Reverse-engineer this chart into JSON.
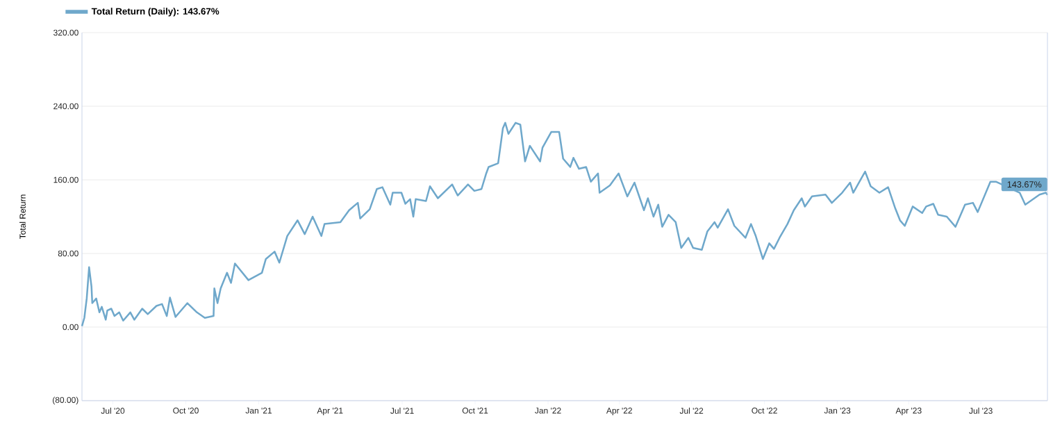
{
  "chart_data": {
    "type": "line",
    "ylabel": "Total Return",
    "legend": "top left",
    "grid": "y",
    "marker": "none",
    "line_style": "solid",
    "xlim": [
      "2020-05-23",
      "2023-09-23"
    ],
    "xticks": [
      {
        "value": "2020-07-01",
        "label": "Jul '20"
      },
      {
        "value": "2020-10-01",
        "label": "Oct '20"
      },
      {
        "value": "2021-01-01",
        "label": "Jan '21"
      },
      {
        "value": "2021-04-01",
        "label": "Apr '21"
      },
      {
        "value": "2021-07-01",
        "label": "Jul '21"
      },
      {
        "value": "2021-10-01",
        "label": "Oct '21"
      },
      {
        "value": "2022-01-01",
        "label": "Jan '22"
      },
      {
        "value": "2022-04-01",
        "label": "Apr '22"
      },
      {
        "value": "2022-07-01",
        "label": "Jul '22"
      },
      {
        "value": "2022-10-01",
        "label": "Oct '22"
      },
      {
        "value": "2023-01-01",
        "label": "Jan '23"
      },
      {
        "value": "2023-04-01",
        "label": "Apr '23"
      },
      {
        "value": "2023-07-01",
        "label": "Jul '23"
      }
    ],
    "ylim": [
      -80,
      320
    ],
    "yticks": [
      {
        "value": -80,
        "label": "(80.00)"
      },
      {
        "value": 0,
        "label": "0.00"
      },
      {
        "value": 80,
        "label": "80.00"
      },
      {
        "value": 160,
        "label": "160.00"
      },
      {
        "value": 240,
        "label": "240.00"
      },
      {
        "value": 320,
        "label": "320.00"
      }
    ],
    "annotations": [
      {
        "text": "143.67%",
        "x": "2023-09-23",
        "y": 143.67
      }
    ],
    "series": [
      {
        "name": "Total Return (Daily): 143.67%",
        "color": "#6fa8cb",
        "x": [
          "2020-05-23",
          "2020-05-26",
          "2020-05-29",
          "2020-06-01",
          "2020-06-04",
          "2020-06-05",
          "2020-06-10",
          "2020-06-14",
          "2020-06-17",
          "2020-06-22",
          "2020-06-24",
          "2020-06-29",
          "2020-07-03",
          "2020-07-09",
          "2020-07-14",
          "2020-07-23",
          "2020-07-28",
          "2020-08-07",
          "2020-08-14",
          "2020-08-25",
          "2020-09-01",
          "2020-09-07",
          "2020-09-11",
          "2020-09-18",
          "2020-10-03",
          "2020-10-15",
          "2020-10-25",
          "2020-11-05",
          "2020-11-06",
          "2020-11-10",
          "2020-11-14",
          "2020-11-22",
          "2020-11-27",
          "2020-12-02",
          "2020-12-19",
          "2021-01-05",
          "2021-01-10",
          "2021-01-21",
          "2021-01-27",
          "2021-02-06",
          "2021-02-19",
          "2021-02-28",
          "2021-03-10",
          "2021-03-21",
          "2021-03-25",
          "2021-04-14",
          "2021-04-25",
          "2021-05-06",
          "2021-05-09",
          "2021-05-21",
          "2021-05-30",
          "2021-06-06",
          "2021-06-16",
          "2021-06-19",
          "2021-06-30",
          "2021-07-05",
          "2021-07-11",
          "2021-07-15",
          "2021-07-18",
          "2021-07-31",
          "2021-08-05",
          "2021-08-15",
          "2021-09-02",
          "2021-09-09",
          "2021-09-22",
          "2021-09-30",
          "2021-10-09",
          "2021-10-15",
          "2021-10-18",
          "2021-10-30",
          "2021-11-05",
          "2021-11-08",
          "2021-11-12",
          "2021-11-21",
          "2021-11-27",
          "2021-12-03",
          "2021-12-09",
          "2021-12-22",
          "2021-12-25",
          "2022-01-05",
          "2022-01-15",
          "2022-01-20",
          "2022-01-29",
          "2022-02-02",
          "2022-02-09",
          "2022-02-18",
          "2022-02-24",
          "2022-03-05",
          "2022-03-07",
          "2022-03-20",
          "2022-03-31",
          "2022-04-11",
          "2022-04-20",
          "2022-05-02",
          "2022-05-07",
          "2022-05-14",
          "2022-05-20",
          "2022-05-25",
          "2022-06-02",
          "2022-06-11",
          "2022-06-18",
          "2022-06-27",
          "2022-07-03",
          "2022-07-14",
          "2022-07-21",
          "2022-07-30",
          "2022-08-03",
          "2022-08-16",
          "2022-08-24",
          "2022-09-07",
          "2022-09-14",
          "2022-09-20",
          "2022-09-29",
          "2022-10-07",
          "2022-10-13",
          "2022-10-20",
          "2022-10-30",
          "2022-11-07",
          "2022-11-17",
          "2022-11-21",
          "2022-11-30",
          "2022-12-17",
          "2022-12-25",
          "2023-01-07",
          "2023-01-17",
          "2023-01-21",
          "2023-02-05",
          "2023-02-12",
          "2023-02-23",
          "2023-03-06",
          "2023-03-15",
          "2023-03-21",
          "2023-03-27",
          "2023-04-06",
          "2023-04-18",
          "2023-04-23",
          "2023-05-02",
          "2023-05-08",
          "2023-05-19",
          "2023-05-30",
          "2023-06-11",
          "2023-06-21",
          "2023-06-27",
          "2023-07-13",
          "2023-07-20",
          "2023-08-19",
          "2023-08-26",
          "2023-09-13",
          "2023-09-21",
          "2023-09-23"
        ],
        "values": [
          1,
          10,
          31,
          65,
          44,
          26,
          31,
          16,
          22,
          8,
          18,
          20,
          12,
          16,
          7,
          16,
          8,
          20,
          14,
          23,
          25,
          12,
          32,
          11,
          26,
          16,
          10,
          12,
          42,
          26,
          42,
          59,
          48,
          69,
          51,
          59,
          74,
          82,
          70,
          99,
          116,
          101,
          120,
          99,
          112,
          114,
          127,
          135,
          118,
          128,
          150,
          152,
          133,
          146,
          146,
          134,
          139,
          120,
          139,
          137,
          153,
          140,
          155,
          143,
          155,
          148,
          150,
          167,
          174,
          178,
          216,
          222,
          210,
          222,
          220,
          180,
          197,
          180,
          195,
          212,
          212,
          183,
          174,
          184,
          172,
          174,
          158,
          167,
          146,
          154,
          167,
          142,
          157,
          127,
          140,
          120,
          133,
          109,
          122,
          114,
          86,
          97,
          86,
          84,
          104,
          114,
          108,
          128,
          110,
          97,
          112,
          99,
          74,
          91,
          85,
          97,
          112,
          127,
          140,
          131,
          142,
          144,
          135,
          146,
          157,
          146,
          169,
          153,
          146,
          152,
          129,
          116,
          110,
          131,
          124,
          131,
          134,
          122,
          120,
          109,
          133,
          135,
          125,
          158,
          158,
          146,
          133,
          144,
          146,
          143.67
        ]
      }
    ]
  }
}
